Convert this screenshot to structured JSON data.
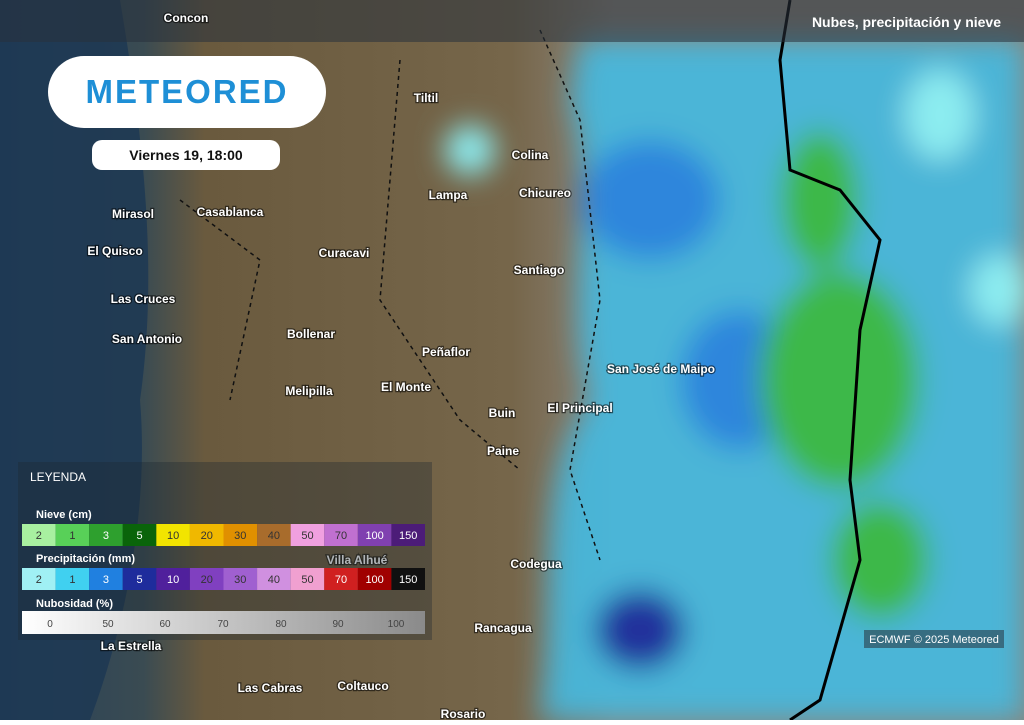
{
  "header": {
    "title": "Nubes, precipitación y nieve"
  },
  "logo": "METEORED",
  "date": "Viernes 19, 18:00",
  "places": [
    "Concon",
    "Tiltil",
    "Colina",
    "Lampa",
    "Chicureo",
    "Mirasol",
    "Casablanca",
    "El Quisco",
    "Curacavi",
    "Santiago",
    "Las Cruces",
    "San Antonio",
    "Bollenar",
    "Peñaflor",
    "San José de Maipo",
    "Melipilla",
    "El Monte",
    "Buin",
    "El Principal",
    "Paine",
    "Codegua",
    "Villa Alhué",
    "La Estrella",
    "Rancagua",
    "Las Cabras",
    "Coltauco",
    "Rosario"
  ],
  "legend": {
    "title": "LEYENDA",
    "snow": {
      "label": "Nieve (cm)",
      "steps": [
        {
          "value": 2,
          "color": "#a8f0a0"
        },
        {
          "value": 1,
          "color": "#58d058"
        },
        {
          "value": 3,
          "color": "#2ea02e"
        },
        {
          "value": 5,
          "color": "#0a640a"
        },
        {
          "value": 10,
          "color": "#f2e400"
        },
        {
          "value": 20,
          "color": "#f0b800"
        },
        {
          "value": 30,
          "color": "#e09000"
        },
        {
          "value": 40,
          "color": "#a86c2c"
        },
        {
          "value": 50,
          "color": "#f0a0e0"
        },
        {
          "value": 70,
          "color": "#c070d0"
        },
        {
          "value": 100,
          "color": "#8040b0"
        },
        {
          "value": 150,
          "color": "#4c1c78"
        }
      ]
    },
    "precip": {
      "label": "Precipitación (mm)",
      "steps": [
        {
          "value": 2,
          "color": "#a0f0f4"
        },
        {
          "value": 1,
          "color": "#40d0f0"
        },
        {
          "value": 3,
          "color": "#2080e0"
        },
        {
          "value": 5,
          "color": "#1e2c9c"
        },
        {
          "value": 10,
          "color": "#50209c"
        },
        {
          "value": 20,
          "color": "#8040c0"
        },
        {
          "value": 30,
          "color": "#a060d0"
        },
        {
          "value": 40,
          "color": "#d090e0"
        },
        {
          "value": 50,
          "color": "#f0a0d0"
        },
        {
          "value": 70,
          "color": "#d02020"
        },
        {
          "value": 100,
          "color": "#a00000"
        },
        {
          "value": 150,
          "color": "#101010"
        }
      ]
    },
    "cloud": {
      "label": "Nubosidad (%)",
      "ticks": [
        0,
        50,
        60,
        70,
        80,
        90,
        100
      ]
    }
  },
  "credit": "ECMWF © 2025 Meteored"
}
